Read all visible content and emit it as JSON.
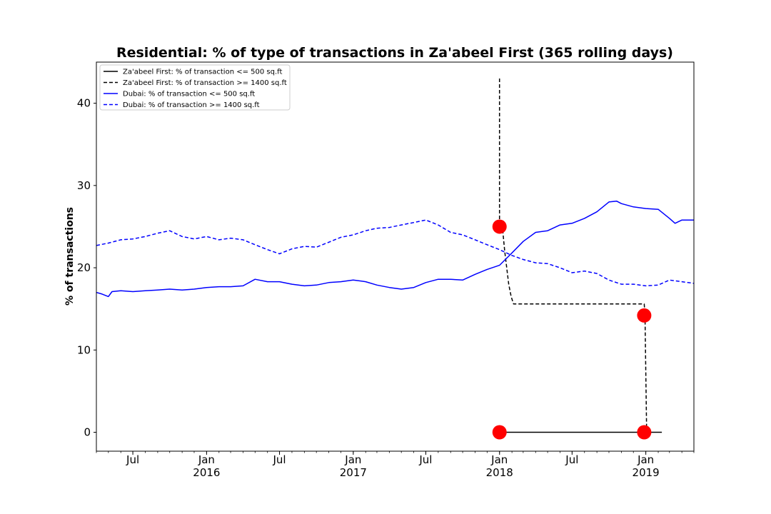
{
  "chart_data": {
    "type": "line",
    "title": "Residential: % of type of transactions in Za'abeel First (365 rolling days)",
    "xlabel": "",
    "ylabel": "% of transactions",
    "xlim": [
      "2015-04-01",
      "2019-05-01"
    ],
    "ylim": [
      -2.3,
      45
    ],
    "yticks": [
      0,
      10,
      20,
      30,
      40
    ],
    "xticks": [
      {
        "date": "2015-07-01",
        "label": "Jul",
        "sublabel": ""
      },
      {
        "date": "2016-01-01",
        "label": "Jan",
        "sublabel": "2016"
      },
      {
        "date": "2016-07-01",
        "label": "Jul",
        "sublabel": ""
      },
      {
        "date": "2017-01-01",
        "label": "Jan",
        "sublabel": "2017"
      },
      {
        "date": "2017-07-01",
        "label": "Jul",
        "sublabel": ""
      },
      {
        "date": "2018-01-01",
        "label": "Jan",
        "sublabel": "2018"
      },
      {
        "date": "2018-07-01",
        "label": "Jul",
        "sublabel": ""
      },
      {
        "date": "2019-01-01",
        "label": "Jan",
        "sublabel": "2019"
      }
    ],
    "grid": false,
    "legend_position": "top-left",
    "series": [
      {
        "name": "Za'abeel First: % of transaction <= 500 sq.ft",
        "color": "#000000",
        "dash": "solid",
        "points": [
          [
            "2018-01-01",
            0
          ],
          [
            "2019-02-10",
            0
          ]
        ]
      },
      {
        "name": "Za'abeel First: % of transaction >= 1400 sq.ft",
        "color": "#000000",
        "dash": "dashed",
        "points": [
          [
            "2018-01-01",
            43
          ],
          [
            "2018-01-01",
            25
          ],
          [
            "2018-01-08",
            25
          ],
          [
            "2018-01-14",
            22
          ],
          [
            "2018-01-24",
            18
          ],
          [
            "2018-01-30",
            16.5
          ],
          [
            "2018-02-05",
            15.6
          ],
          [
            "2018-12-28",
            15.6
          ],
          [
            "2018-12-30",
            14.2
          ],
          [
            "2019-01-03",
            0
          ]
        ]
      },
      {
        "name": "Dubai: % of transaction <= 500 sq.ft",
        "color": "#0000ff",
        "dash": "solid",
        "points": [
          [
            "2015-04-01",
            17.0
          ],
          [
            "2015-04-15",
            16.8
          ],
          [
            "2015-05-01",
            16.5
          ],
          [
            "2015-05-10",
            17.1
          ],
          [
            "2015-06-01",
            17.2
          ],
          [
            "2015-07-01",
            17.1
          ],
          [
            "2015-08-01",
            17.2
          ],
          [
            "2015-09-01",
            17.3
          ],
          [
            "2015-10-01",
            17.4
          ],
          [
            "2015-11-01",
            17.3
          ],
          [
            "2015-12-01",
            17.4
          ],
          [
            "2016-01-01",
            17.6
          ],
          [
            "2016-02-01",
            17.7
          ],
          [
            "2016-03-01",
            17.7
          ],
          [
            "2016-04-01",
            17.8
          ],
          [
            "2016-05-01",
            18.6
          ],
          [
            "2016-06-01",
            18.3
          ],
          [
            "2016-07-01",
            18.3
          ],
          [
            "2016-08-01",
            18.0
          ],
          [
            "2016-09-01",
            17.8
          ],
          [
            "2016-10-01",
            17.9
          ],
          [
            "2016-11-01",
            18.2
          ],
          [
            "2016-12-01",
            18.3
          ],
          [
            "2017-01-01",
            18.5
          ],
          [
            "2017-02-01",
            18.3
          ],
          [
            "2017-03-01",
            17.9
          ],
          [
            "2017-04-01",
            17.6
          ],
          [
            "2017-05-01",
            17.4
          ],
          [
            "2017-06-01",
            17.6
          ],
          [
            "2017-07-01",
            18.2
          ],
          [
            "2017-08-01",
            18.6
          ],
          [
            "2017-09-01",
            18.6
          ],
          [
            "2017-10-01",
            18.5
          ],
          [
            "2017-11-01",
            19.2
          ],
          [
            "2017-12-01",
            19.8
          ],
          [
            "2018-01-01",
            20.3
          ],
          [
            "2018-02-01",
            21.8
          ],
          [
            "2018-03-01",
            23.2
          ],
          [
            "2018-04-01",
            24.3
          ],
          [
            "2018-05-01",
            24.5
          ],
          [
            "2018-06-01",
            25.2
          ],
          [
            "2018-07-01",
            25.4
          ],
          [
            "2018-08-01",
            26.0
          ],
          [
            "2018-09-01",
            26.8
          ],
          [
            "2018-10-01",
            28.0
          ],
          [
            "2018-10-20",
            28.1
          ],
          [
            "2018-11-01",
            27.8
          ],
          [
            "2018-12-01",
            27.4
          ],
          [
            "2019-01-01",
            27.2
          ],
          [
            "2019-02-01",
            27.1
          ],
          [
            "2019-03-01",
            26.0
          ],
          [
            "2019-03-15",
            25.4
          ],
          [
            "2019-04-01",
            25.8
          ],
          [
            "2019-05-01",
            25.8
          ]
        ]
      },
      {
        "name": "Dubai: % of transaction >= 1400 sq.ft",
        "color": "#0000ff",
        "dash": "dashed",
        "points": [
          [
            "2015-04-01",
            22.7
          ],
          [
            "2015-05-01",
            23.0
          ],
          [
            "2015-06-01",
            23.4
          ],
          [
            "2015-07-01",
            23.5
          ],
          [
            "2015-08-01",
            23.8
          ],
          [
            "2015-09-01",
            24.2
          ],
          [
            "2015-10-01",
            24.5
          ],
          [
            "2015-11-01",
            23.8
          ],
          [
            "2015-12-01",
            23.5
          ],
          [
            "2016-01-01",
            23.8
          ],
          [
            "2016-02-01",
            23.4
          ],
          [
            "2016-03-01",
            23.6
          ],
          [
            "2016-04-01",
            23.4
          ],
          [
            "2016-05-01",
            22.8
          ],
          [
            "2016-06-01",
            22.2
          ],
          [
            "2016-07-01",
            21.7
          ],
          [
            "2016-08-01",
            22.3
          ],
          [
            "2016-09-01",
            22.6
          ],
          [
            "2016-10-01",
            22.5
          ],
          [
            "2016-11-01",
            23.1
          ],
          [
            "2016-12-01",
            23.7
          ],
          [
            "2017-01-01",
            24.0
          ],
          [
            "2017-02-01",
            24.5
          ],
          [
            "2017-03-01",
            24.8
          ],
          [
            "2017-04-01",
            24.9
          ],
          [
            "2017-05-01",
            25.2
          ],
          [
            "2017-06-01",
            25.5
          ],
          [
            "2017-07-01",
            25.8
          ],
          [
            "2017-08-01",
            25.2
          ],
          [
            "2017-09-01",
            24.3
          ],
          [
            "2017-10-01",
            24.0
          ],
          [
            "2017-11-01",
            23.4
          ],
          [
            "2017-12-01",
            22.8
          ],
          [
            "2018-01-01",
            22.2
          ],
          [
            "2018-02-01",
            21.5
          ],
          [
            "2018-03-01",
            21.0
          ],
          [
            "2018-04-01",
            20.6
          ],
          [
            "2018-05-01",
            20.5
          ],
          [
            "2018-06-01",
            20.0
          ],
          [
            "2018-07-01",
            19.4
          ],
          [
            "2018-08-01",
            19.6
          ],
          [
            "2018-09-01",
            19.3
          ],
          [
            "2018-10-01",
            18.5
          ],
          [
            "2018-11-01",
            18.0
          ],
          [
            "2018-12-01",
            18.0
          ],
          [
            "2019-01-01",
            17.8
          ],
          [
            "2019-02-01",
            17.9
          ],
          [
            "2019-03-01",
            18.5
          ],
          [
            "2019-04-01",
            18.3
          ],
          [
            "2019-05-01",
            18.1
          ]
        ]
      }
    ],
    "markers": [
      {
        "date": "2018-01-01",
        "value": 25,
        "color": "#ff0000"
      },
      {
        "date": "2018-01-01",
        "value": 0,
        "color": "#ff0000"
      },
      {
        "date": "2018-12-28",
        "value": 14.2,
        "color": "#ff0000"
      },
      {
        "date": "2018-12-28",
        "value": 0,
        "color": "#ff0000"
      }
    ]
  }
}
